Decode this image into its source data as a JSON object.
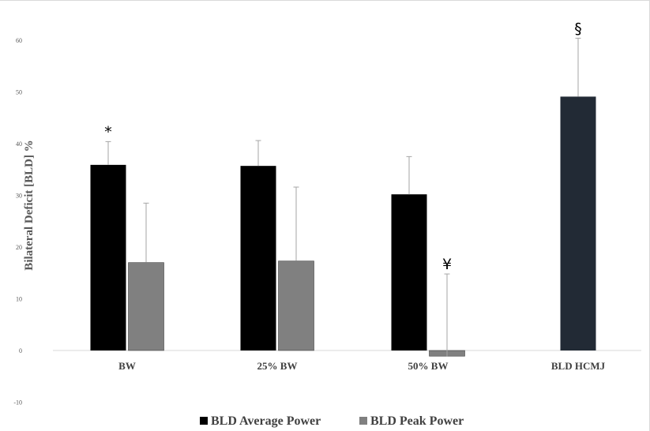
{
  "chart_data": {
    "type": "bar",
    "ylabel": "Bilateral Deficit [BLD] %",
    "ylim": [
      -10,
      60
    ],
    "yticks": [
      "-10",
      "0",
      "10",
      "20",
      "30",
      "40",
      "50",
      "60"
    ],
    "categories": [
      "BW",
      "25% BW",
      "50% BW",
      "BLD HCMJ"
    ],
    "series": [
      {
        "name": "BLD Average Power",
        "color": "#000000",
        "values": [
          35.9,
          35.7,
          30.2,
          null
        ],
        "errors": [
          4.5,
          4.9,
          7.3,
          null
        ]
      },
      {
        "name": "BLD Peak Power",
        "color": "#808080",
        "values": [
          17.0,
          17.3,
          -1.1,
          null
        ],
        "errors": [
          11.5,
          14.3,
          15.9,
          null
        ]
      },
      {
        "name": "BLD HCMJ",
        "color": "#222a35",
        "values": [
          null,
          null,
          null,
          49.1
        ],
        "errors": [
          null,
          null,
          null,
          11.3
        ]
      }
    ],
    "annotations": [
      {
        "text": "*",
        "category": "BW",
        "series": "BLD Average Power"
      },
      {
        "text": "¥",
        "category": "50% BW",
        "series": "BLD Peak Power"
      },
      {
        "text": "§",
        "category": "BLD HCMJ",
        "series": "BLD HCMJ"
      }
    ],
    "legend": {
      "position": "bottom",
      "items": [
        {
          "label": "BLD Average Power",
          "color": "#000000"
        },
        {
          "label": "BLD Peak Power",
          "color": "#808080"
        }
      ]
    },
    "grid": false
  }
}
